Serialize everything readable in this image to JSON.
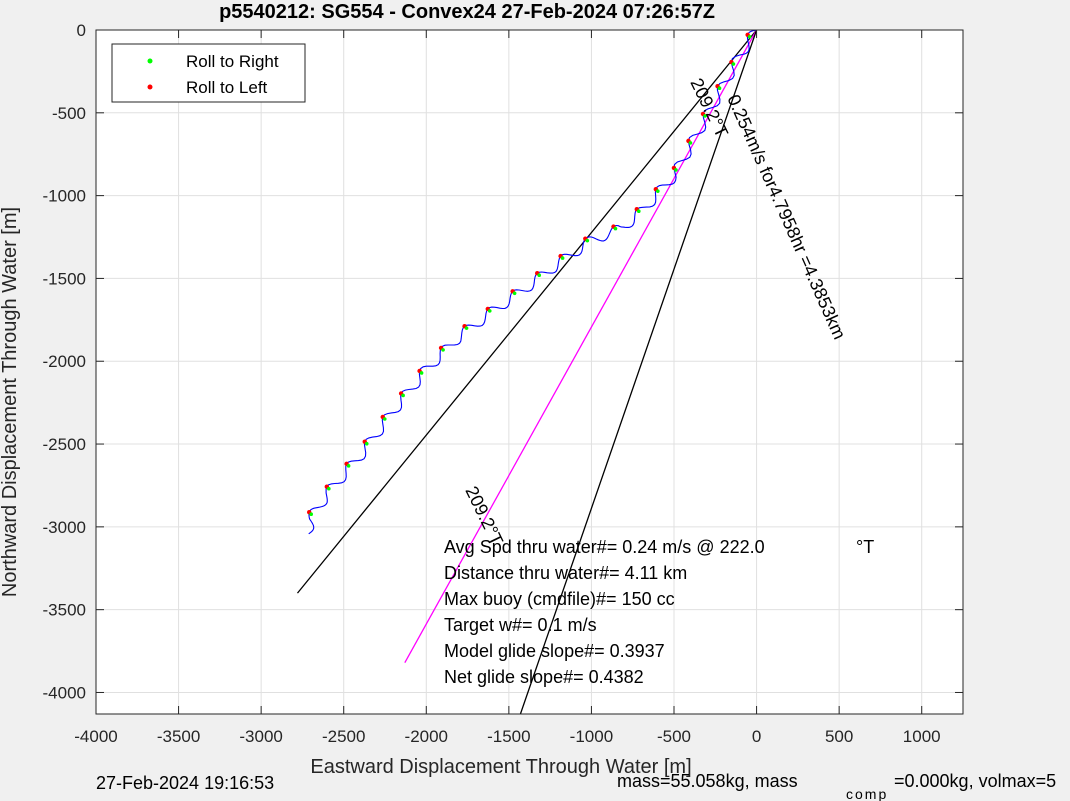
{
  "colors": {
    "background": "#f0f0f0",
    "axes_bg": "#ffffff",
    "track": "#0000ff",
    "roll_right": "#00ff00",
    "roll_left": "#ff0000",
    "heading_line": "#ff00ff",
    "reference": "#000000"
  },
  "chart_data": {
    "type": "line",
    "title": "p5540212: SG554 - Convex24 27-Feb-2024 07:26:57Z",
    "xlabel": "Eastward Displacement Through Water [m]",
    "ylabel": "Northward Displacement Through Water [m]",
    "xlim": [
      -4000,
      1250
    ],
    "ylim": [
      -4130,
      0
    ],
    "xticks": [
      -4000,
      -3500,
      -3000,
      -2500,
      -2000,
      -1500,
      -1000,
      -500,
      0,
      500,
      1000
    ],
    "yticks": [
      0,
      -500,
      -1000,
      -1500,
      -2000,
      -2500,
      -3000,
      -3500,
      -4000
    ],
    "xtick_labels": [
      "-4000",
      "-3500",
      "-3000",
      "-2500",
      "-2000",
      "-1500",
      "-1000",
      "-500",
      "0",
      "500",
      "1000"
    ],
    "ytick_labels": [
      "0",
      "-500",
      "-1000",
      "-1500",
      "-2000",
      "-2500",
      "-3000",
      "-3500",
      "-4000"
    ],
    "grid": true,
    "legend": {
      "location": "top-left",
      "entries": [
        "Roll to Right",
        "Roll to Left"
      ]
    },
    "series": [
      {
        "name": "Roll to Right",
        "marker": "dot"
      },
      {
        "name": "Roll to Left",
        "marker": "dot"
      }
    ],
    "track": {
      "x": [
        0,
        -100,
        -300,
        -500,
        -700,
        -820,
        -1000,
        -1200,
        -1400,
        -1600,
        -1800,
        -2000,
        -2200,
        -2400,
        -2600,
        -2700,
        -2720
      ],
      "y": [
        0,
        -150,
        -520,
        -880,
        -1100,
        -1200,
        -1270,
        -1410,
        -1560,
        -1700,
        -1850,
        -2050,
        -2300,
        -2570,
        -2800,
        -2950,
        -3040
      ]
    },
    "reference_lines": [
      {
        "from": [
          0,
          0
        ],
        "to": [
          -2780,
          -3400
        ],
        "label": "209.2°T"
      },
      {
        "from": [
          0,
          0
        ],
        "to": [
          -2130,
          -3820
        ],
        "label": "0.254m/s for4.7958hr =4.3853km"
      },
      {
        "from": [
          0,
          0
        ],
        "to": [
          -1430,
          -4130
        ],
        "label": "209.2°T"
      }
    ],
    "annotations": [
      "Avg Spd thru water#=  0.24 m/s @ 222.0",
      "°T",
      "Distance thru water#=  4.11 km",
      "Max buoy (cmdfile)#= 150 cc",
      "Target w#= 0.1 m/s",
      "Model glide slope#= 0.3937",
      "Net glide slope#= 0.4382"
    ]
  },
  "footer": {
    "timestamp": "27-Feb-2024 19:16:53",
    "mass_text": "mass=55.058kg, mass",
    "comp_sub": "comp",
    "comp_rest": "=0.000kg, volmax=5"
  }
}
